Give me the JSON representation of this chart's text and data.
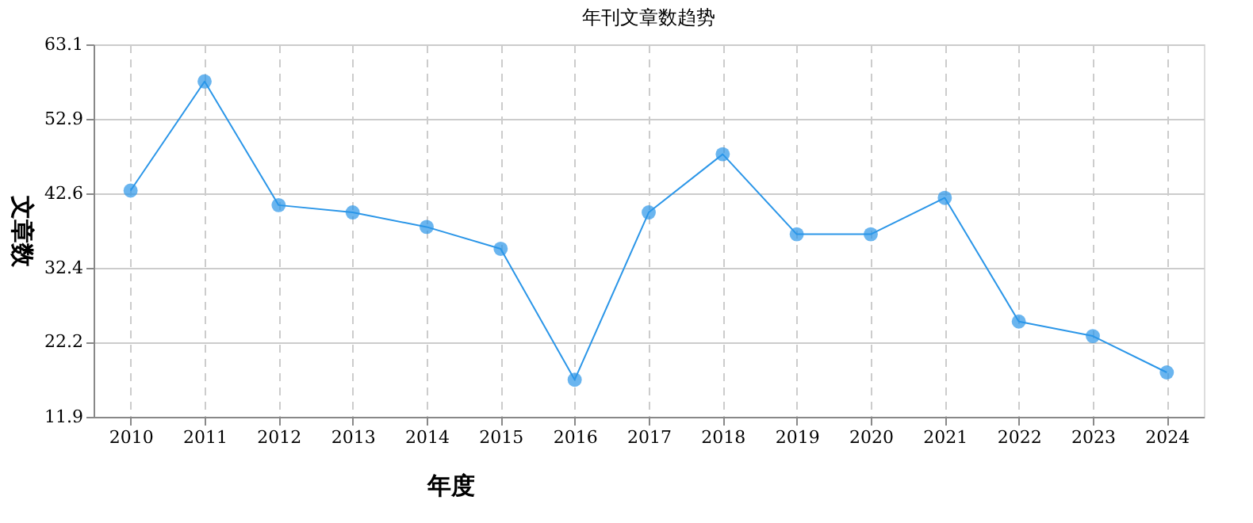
{
  "chart_data": {
    "type": "line",
    "title": "年刊文章数趋势",
    "xlabel": "年度",
    "ylabel": "文章数",
    "categories": [
      "2010",
      "2011",
      "2012",
      "2013",
      "2014",
      "2015",
      "2016",
      "2017",
      "2018",
      "2019",
      "2020",
      "2021",
      "2022",
      "2023",
      "2024"
    ],
    "series": [
      {
        "color": "#2b96e8",
        "values": [
          43,
          58,
          41,
          40,
          38,
          35,
          17,
          40,
          48,
          37,
          37,
          42,
          25,
          23,
          18
        ]
      }
    ],
    "ylim": [
      11.9,
      63.1
    ],
    "yticks": [
      11.9,
      22.2,
      32.4,
      42.6,
      52.9,
      63.1
    ],
    "grid": true,
    "marker": "circle",
    "line_style": "solid"
  }
}
